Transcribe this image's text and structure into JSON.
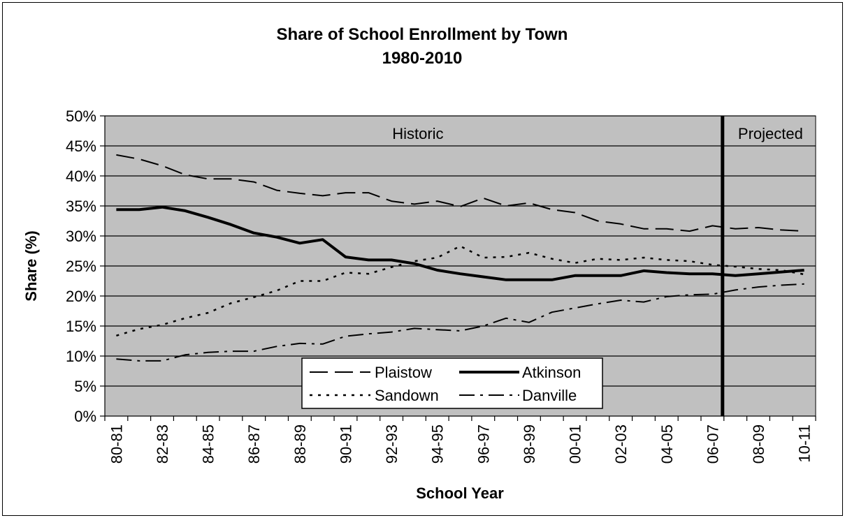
{
  "chart_data": {
    "type": "line",
    "title": "Share of School Enrollment by Town",
    "subtitle": "1980-2010",
    "xlabel": "School Year",
    "ylabel": "Share (%)",
    "ylim": [
      0,
      50
    ],
    "ytick_step": 5,
    "grid": true,
    "legend_position": "lower-center",
    "categories": [
      "80-81",
      "81-82",
      "82-83",
      "83-84",
      "84-85",
      "85-86",
      "86-87",
      "87-88",
      "88-89",
      "89-90",
      "90-91",
      "91-92",
      "92-93",
      "93-94",
      "94-95",
      "95-96",
      "96-97",
      "97-98",
      "98-99",
      "99-00",
      "00-01",
      "01-02",
      "02-03",
      "03-04",
      "04-05",
      "05-06",
      "06-07",
      "07-08",
      "08-09",
      "09-10",
      "10-11"
    ],
    "xtick_labels": [
      "80-81",
      "82-83",
      "84-85",
      "86-87",
      "88-89",
      "90-91",
      "92-93",
      "94-95",
      "96-97",
      "98-99",
      "00-01",
      "02-03",
      "04-05",
      "06-07",
      "08-09",
      "10-11"
    ],
    "regions": [
      {
        "label": "Historic"
      },
      {
        "label": "Projected",
        "divider_after": "06-07"
      }
    ],
    "series": [
      {
        "name": "Plaistow",
        "values": [
          43.5,
          42.8,
          41.7,
          40.2,
          39.5,
          39.5,
          39.0,
          37.6,
          37.1,
          36.7,
          37.2,
          37.2,
          35.8,
          35.3,
          35.8,
          34.9,
          36.3,
          35.0,
          35.5,
          34.4,
          33.9,
          32.5,
          32.0,
          31.2,
          31.2,
          30.8,
          31.7,
          31.2,
          31.4,
          31.0,
          30.8
        ]
      },
      {
        "name": "Atkinson",
        "values": [
          34.4,
          34.4,
          34.8,
          34.2,
          33.1,
          31.9,
          30.5,
          29.8,
          28.8,
          29.4,
          26.5,
          26.0,
          26.0,
          25.4,
          24.3,
          23.7,
          23.2,
          22.7,
          22.7,
          22.7,
          23.4,
          23.4,
          23.4,
          24.2,
          23.9,
          23.7,
          23.7,
          23.4,
          23.7,
          24.0,
          24.3
        ]
      },
      {
        "name": "Sandown",
        "values": [
          13.4,
          14.5,
          15.2,
          16.3,
          17.2,
          18.8,
          19.8,
          20.9,
          22.5,
          22.5,
          23.9,
          23.7,
          24.8,
          25.8,
          26.4,
          28.3,
          26.4,
          26.5,
          27.2,
          26.2,
          25.5,
          26.2,
          26.0,
          26.4,
          26.0,
          25.8,
          25.2,
          24.9,
          24.5,
          24.3,
          23.6
        ]
      },
      {
        "name": "Danville",
        "values": [
          9.5,
          9.2,
          9.2,
          10.2,
          10.6,
          10.8,
          10.8,
          11.6,
          12.1,
          12.0,
          13.3,
          13.7,
          14.0,
          14.6,
          14.4,
          14.2,
          15.0,
          16.3,
          15.6,
          17.3,
          18.0,
          18.7,
          19.3,
          19.0,
          19.9,
          20.2,
          20.3,
          21.0,
          21.5,
          21.8,
          22.0
        ]
      }
    ]
  }
}
